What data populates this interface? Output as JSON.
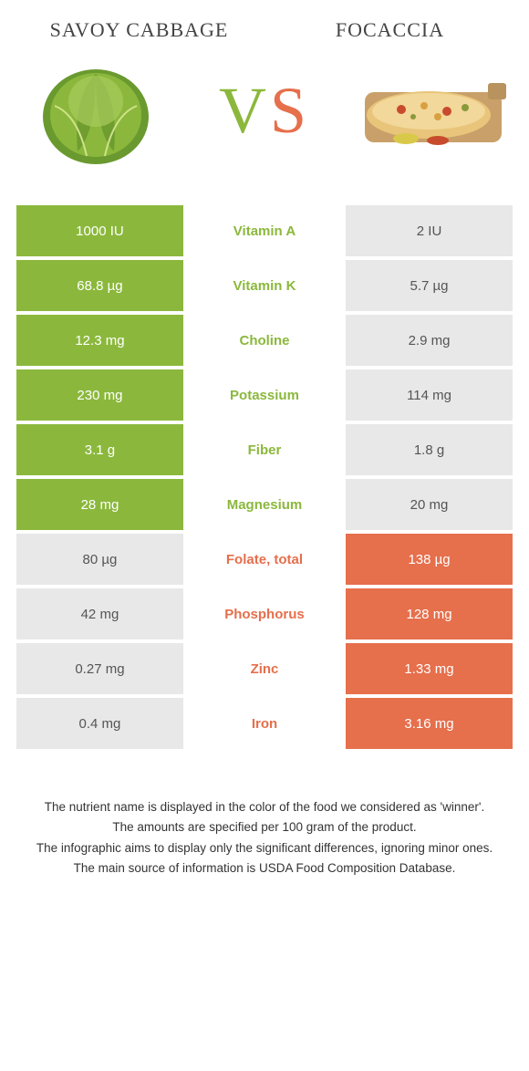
{
  "food_left": {
    "name": "Savoy cabbage",
    "color": "#8bb83c",
    "neutral_color": "#e8e8e8"
  },
  "food_right": {
    "name": "Focaccia",
    "color": "#e66f4c",
    "neutral_color": "#e8e8e8"
  },
  "vs_label": {
    "v": "V",
    "s": "S"
  },
  "rows": [
    {
      "left": "1000 IU",
      "label": "Vitamin A",
      "right": "2 IU",
      "winner": "left"
    },
    {
      "left": "68.8 µg",
      "label": "Vitamin K",
      "right": "5.7 µg",
      "winner": "left"
    },
    {
      "left": "12.3 mg",
      "label": "Choline",
      "right": "2.9 mg",
      "winner": "left"
    },
    {
      "left": "230 mg",
      "label": "Potassium",
      "right": "114 mg",
      "winner": "left"
    },
    {
      "left": "3.1 g",
      "label": "Fiber",
      "right": "1.8 g",
      "winner": "left"
    },
    {
      "left": "28 mg",
      "label": "Magnesium",
      "right": "20 mg",
      "winner": "left"
    },
    {
      "left": "80 µg",
      "label": "Folate, total",
      "right": "138 µg",
      "winner": "right"
    },
    {
      "left": "42 mg",
      "label": "Phosphorus",
      "right": "128 mg",
      "winner": "right"
    },
    {
      "left": "0.27 mg",
      "label": "Zinc",
      "right": "1.33 mg",
      "winner": "right"
    },
    {
      "left": "0.4 mg",
      "label": "Iron",
      "right": "3.16 mg",
      "winner": "right"
    }
  ],
  "footnotes": [
    "The nutrient name is displayed in the color of the food we considered as 'winner'.",
    "The amounts are specified per 100 gram of the product.",
    "The infographic aims to display only the significant differences, ignoring minor ones.",
    "The main source of information is USDA Food Composition Database."
  ]
}
